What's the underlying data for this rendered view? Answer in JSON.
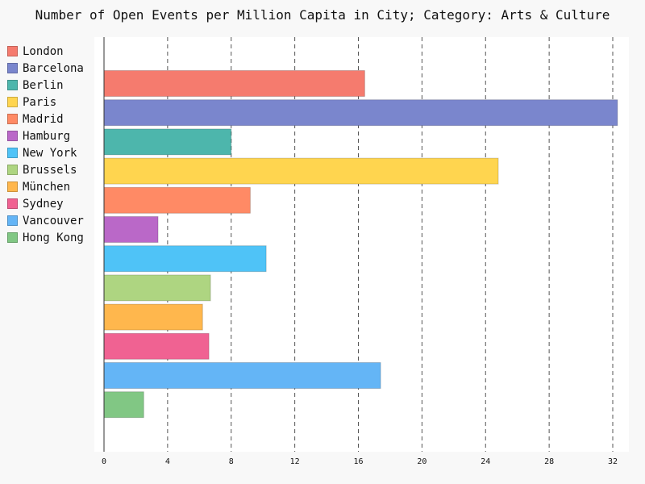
{
  "chart_data": {
    "type": "bar",
    "orientation": "horizontal",
    "title": "Number of Open Events per Million Capita in City; Category: Arts & Culture",
    "xlabel": "",
    "ylabel": "",
    "xlim": [
      0,
      32.6
    ],
    "x_ticks": [
      0,
      4,
      8,
      12,
      16,
      20,
      24,
      28,
      32
    ],
    "grid": "vertical dashed",
    "legend_position": "left",
    "categories": [
      "London",
      "Barcelona",
      "Berlin",
      "Paris",
      "Madrid",
      "Hamburg",
      "New York",
      "Brussels",
      "München",
      "Sydney",
      "Vancouver",
      "Hong Kong"
    ],
    "values": [
      16.4,
      32.3,
      8.0,
      24.8,
      9.2,
      3.4,
      10.2,
      6.7,
      6.2,
      6.6,
      17.4,
      2.5
    ],
    "colors": [
      "#f57b6e",
      "#7a86cd",
      "#4db6ac",
      "#ffd54f",
      "#ff8a65",
      "#ba68c8",
      "#4fc3f7",
      "#aed581",
      "#ffb74d",
      "#f06292",
      "#64b5f6",
      "#81c784"
    ]
  }
}
